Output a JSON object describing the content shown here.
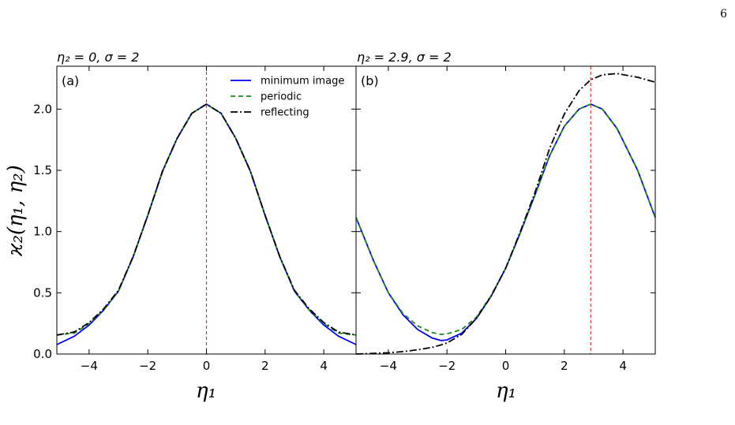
{
  "page": {
    "page_number": "6"
  },
  "chart_data": [
    {
      "type": "line",
      "panel_label": "(a)",
      "title": "η₂ = 0,  σ = 2",
      "xlabel": "η₁",
      "ylabel": "ϰ₂(η₁, η₂)",
      "xlim": [
        -5.1,
        5.1
      ],
      "ylim": [
        0,
        2.35
      ],
      "xticks": [
        -4,
        -2,
        0,
        2,
        4
      ],
      "xtick_labels": [
        "−4",
        "−2",
        "0",
        "2",
        "4"
      ],
      "yticks": [
        0.0,
        0.5,
        1.0,
        1.5,
        2.0
      ],
      "ytick_labels": [
        "0.0",
        "0.5",
        "1.0",
        "1.5",
        "2.0"
      ],
      "vline": {
        "x": 0,
        "color": "#e8312f",
        "style": "dashed"
      },
      "grid": false,
      "legend": {
        "placement": "top-right"
      },
      "x": [
        -5.1,
        -4.5,
        -4.0,
        -3.5,
        -3.0,
        -2.5,
        -2.0,
        -1.5,
        -1.0,
        -0.5,
        0,
        0.5,
        1.0,
        1.5,
        2.0,
        2.5,
        3.0,
        3.5,
        4.0,
        4.5,
        5.1
      ],
      "series": [
        {
          "name": "minimum image",
          "color": "#0000ff",
          "style": "solid",
          "values": [
            0.077,
            0.146,
            0.237,
            0.36,
            0.513,
            0.793,
            1.132,
            1.492,
            1.76,
            1.965,
            2.04,
            1.965,
            1.76,
            1.492,
            1.132,
            0.793,
            0.513,
            0.36,
            0.237,
            0.146,
            0.077
          ]
        },
        {
          "name": "periodic",
          "color": "#1a8a1a",
          "style": "dashed",
          "values": [
            0.155,
            0.171,
            0.247,
            0.362,
            0.514,
            0.793,
            1.132,
            1.492,
            1.76,
            1.965,
            2.04,
            1.965,
            1.76,
            1.492,
            1.132,
            0.793,
            0.514,
            0.362,
            0.247,
            0.171,
            0.155
          ]
        },
        {
          "name": "reflecting",
          "color": "#000000",
          "style": "dashdot",
          "values": [
            0.155,
            0.18,
            0.257,
            0.37,
            0.52,
            0.795,
            1.133,
            1.492,
            1.76,
            1.965,
            2.04,
            1.965,
            1.76,
            1.492,
            1.133,
            0.795,
            0.52,
            0.37,
            0.257,
            0.18,
            0.155
          ]
        }
      ]
    },
    {
      "type": "line",
      "panel_label": "(b)",
      "title": "η₂ = 2.9,  σ = 2",
      "xlabel": "η₁",
      "ylabel": "",
      "xlim": [
        -5.1,
        5.1
      ],
      "ylim": [
        0,
        2.35
      ],
      "xticks": [
        -4,
        -2,
        0,
        2,
        4
      ],
      "xtick_labels": [
        "−4",
        "−2",
        "0",
        "2",
        "4"
      ],
      "yticks": [
        0.0,
        0.5,
        1.0,
        1.5,
        2.0
      ],
      "vline": {
        "x": 2.9,
        "color": "#e8312f",
        "style": "dashed"
      },
      "grid": false,
      "x": [
        -5.1,
        -4.5,
        -4.0,
        -3.5,
        -3.0,
        -2.5,
        -2.2,
        -2.0,
        -1.5,
        -1.0,
        -0.5,
        0,
        0.5,
        1.0,
        1.5,
        2.0,
        2.5,
        2.9,
        3.3,
        3.8,
        4.5,
        5.1
      ],
      "series": [
        {
          "name": "minimum image",
          "color": "#0000ff",
          "style": "solid",
          "values": [
            1.115,
            0.76,
            0.5,
            0.32,
            0.2,
            0.13,
            0.11,
            0.115,
            0.17,
            0.29,
            0.47,
            0.7,
            0.99,
            1.3,
            1.62,
            1.86,
            2.0,
            2.04,
            2.0,
            1.84,
            1.5,
            1.115
          ]
        },
        {
          "name": "periodic",
          "color": "#1a8a1a",
          "style": "dashed",
          "values": [
            1.115,
            0.76,
            0.5,
            0.33,
            0.23,
            0.175,
            0.16,
            0.165,
            0.2,
            0.3,
            0.475,
            0.7,
            0.99,
            1.3,
            1.62,
            1.86,
            2.0,
            2.04,
            2.0,
            1.84,
            1.5,
            1.115
          ]
        },
        {
          "name": "reflecting",
          "color": "#000000",
          "style": "dashdot",
          "values": [
            0.0,
            0.005,
            0.01,
            0.02,
            0.035,
            0.055,
            0.075,
            0.09,
            0.16,
            0.29,
            0.47,
            0.7,
            1.0,
            1.32,
            1.68,
            1.96,
            2.15,
            2.24,
            2.28,
            2.29,
            2.26,
            2.22
          ]
        }
      ]
    }
  ]
}
